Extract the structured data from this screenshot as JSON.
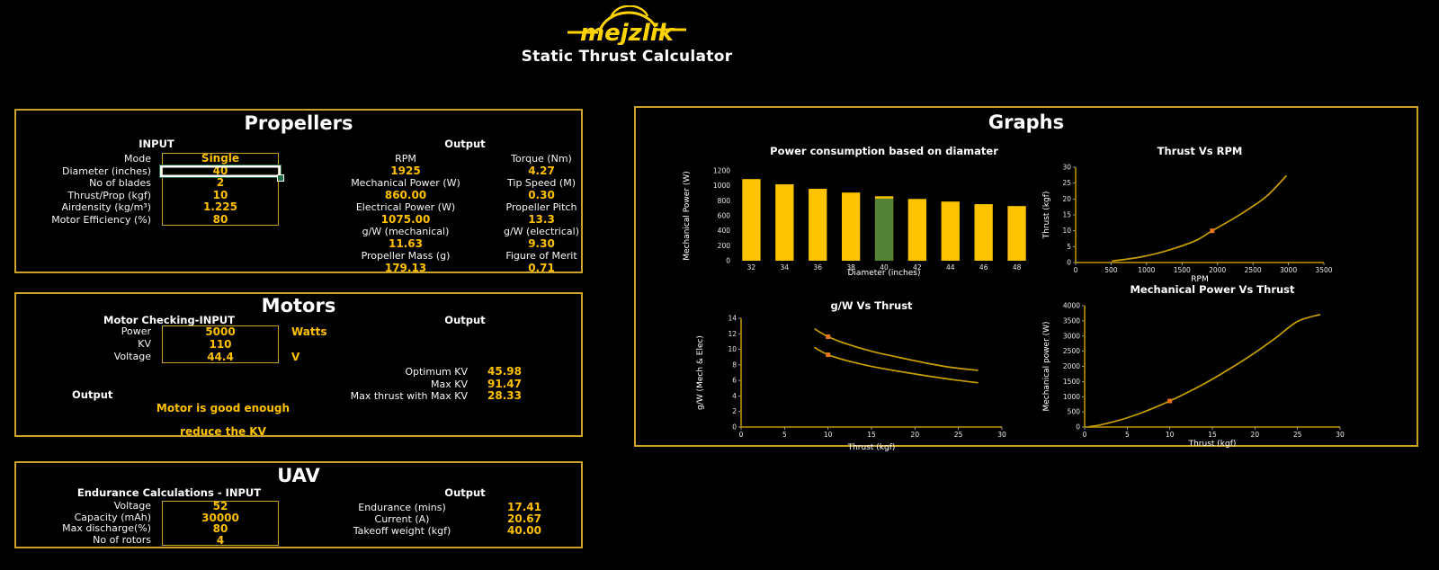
{
  "header": {
    "logo_text": "mejzlik",
    "title": "Static Thrust Calculator"
  },
  "colors": {
    "gold_text": "#FFC000",
    "panel_border": "#C9A227",
    "bar_gold": "#FFC300",
    "bar_green": "#538135",
    "line_gold": "#C9A000",
    "axis_gold": "#A68100",
    "marker_orange": "#E8751A",
    "selection_green": "#1E7145",
    "logo_yellow": "#FFD400"
  },
  "propellers": {
    "title": "Propellers",
    "input_header": "INPUT",
    "output_header": "Output",
    "input_rows": [
      {
        "label": "Mode",
        "value": "Single"
      },
      {
        "label": "Diameter (inches)",
        "value": "40"
      },
      {
        "label": "No of blades",
        "value": "2"
      },
      {
        "label": "Thrust/Prop (kgf)",
        "value": "10"
      },
      {
        "label": "Airdensity (kg/m³)",
        "value": "1.225"
      },
      {
        "label": "Motor Efficiency (%)",
        "value": "80"
      }
    ],
    "output_rows": [
      {
        "l_label": "RPM",
        "l_value": "1925",
        "r_label": "Torque (Nm)",
        "r_value": "4.27"
      },
      {
        "l_label": "Mechanical Power (W)",
        "l_value": "860.00",
        "r_label": "Tip Speed (M)",
        "r_value": "0.30"
      },
      {
        "l_label": "Electrical Power (W)",
        "l_value": "1075.00",
        "r_label": "Propeller Pitch",
        "r_value": "13.3"
      },
      {
        "l_label": "g/W (mechanical)",
        "l_value": "11.63",
        "r_label": "g/W (electrical)",
        "r_value": "9.30"
      },
      {
        "l_label": "Propeller Mass (g)",
        "l_value": "179.13",
        "r_label": "Figure of Merit",
        "r_value": "0.71"
      }
    ]
  },
  "motors": {
    "title": "Motors",
    "input_header": "Motor Checking-INPUT",
    "output_header": "Output",
    "output_label": "Output",
    "input_rows": [
      {
        "label": "Power",
        "value": "5000",
        "unit": "Watts"
      },
      {
        "label": "KV",
        "value": "110",
        "unit": ""
      },
      {
        "label": "Voltage",
        "value": "44.4",
        "unit": "V"
      }
    ],
    "messages": [
      "Motor is good enough",
      "reduce the KV"
    ],
    "output_rows": [
      {
        "label": "Optimum KV",
        "value": "45.98"
      },
      {
        "label": "Max KV",
        "value": "91.47"
      },
      {
        "label": "Max thrust with Max KV",
        "value": "28.33"
      }
    ]
  },
  "uav": {
    "title": "UAV",
    "input_header": "Endurance Calculations - INPUT",
    "output_header": "Output",
    "input_rows": [
      {
        "label": "Voltage",
        "value": "52"
      },
      {
        "label": "Capacity (mAh)",
        "value": "30000"
      },
      {
        "label": "Max discharge(%)",
        "value": "80"
      },
      {
        "label": "No of rotors",
        "value": "4"
      }
    ],
    "output_rows": [
      {
        "label": "Endurance (mins)",
        "value": "17.41"
      },
      {
        "label": "Current (A)",
        "value": "20.67"
      },
      {
        "label": "Takeoff weight (kgf)",
        "value": "40.00"
      }
    ]
  },
  "graphs": {
    "title": "Graphs"
  },
  "chart_data": [
    {
      "type": "bar",
      "title": "Power consumption based on diamater",
      "xlabel": "Diameter (inches)",
      "ylabel": "Mechanical Power (W)",
      "categories": [
        "32",
        "34",
        "36",
        "38",
        "40",
        "42",
        "44",
        "46",
        "48"
      ],
      "values": [
        1090,
        1020,
        960,
        910,
        860,
        825,
        790,
        755,
        730
      ],
      "highlight_index": 4,
      "ylim": [
        0,
        1200
      ],
      "yticks": [
        0,
        200,
        400,
        600,
        800,
        1000,
        1200
      ]
    },
    {
      "type": "line",
      "title": "Thrust Vs RPM",
      "xlabel": "RPM",
      "ylabel": "Thrust (kgf)",
      "xlim": [
        0,
        3500
      ],
      "ylim": [
        0,
        30
      ],
      "xticks": [
        0,
        500,
        1000,
        1500,
        2000,
        2500,
        3000,
        3500
      ],
      "yticks": [
        0,
        5,
        10,
        15,
        20,
        25,
        30
      ],
      "series": [
        {
          "name": "Thrust",
          "x": [
            520,
            800,
            1100,
            1400,
            1700,
            1925,
            2200,
            2450,
            2700,
            2967
          ],
          "y": [
            0.5,
            1.3,
            2.6,
            4.5,
            7.0,
            10.0,
            13.5,
            17.0,
            21.0,
            27.2
          ]
        }
      ],
      "markers": [
        {
          "x": 1925,
          "y": 10
        }
      ]
    },
    {
      "type": "line",
      "title": "g/W Vs Thrust",
      "xlabel": "Thrust (kgf)",
      "ylabel": "g/W (Mech & Elec)",
      "xlim": [
        0,
        30
      ],
      "ylim": [
        0,
        14
      ],
      "xticks": [
        0,
        5,
        10,
        15,
        20,
        25,
        30
      ],
      "yticks": [
        0,
        2,
        4,
        6,
        8,
        10,
        12,
        14
      ],
      "series": [
        {
          "name": "g/W mechanical",
          "x": [
            8.5,
            10,
            12,
            15,
            18,
            21,
            24,
            27.2
          ],
          "y": [
            12.6,
            11.63,
            10.75,
            9.75,
            9.0,
            8.3,
            7.7,
            7.3
          ]
        },
        {
          "name": "g/W electrical",
          "x": [
            8.5,
            10,
            12,
            15,
            18,
            21,
            24,
            27.2
          ],
          "y": [
            10.2,
            9.3,
            8.6,
            7.8,
            7.2,
            6.65,
            6.15,
            5.7
          ]
        }
      ],
      "markers": [
        {
          "x": 10,
          "y": 11.63
        },
        {
          "x": 10,
          "y": 9.3
        }
      ]
    },
    {
      "type": "line",
      "title": "Mechanical Power Vs Thrust",
      "xlabel": "Thrust (kgf)",
      "ylabel": "Mechanical power (W)",
      "xlim": [
        0,
        30
      ],
      "ylim": [
        0,
        4000
      ],
      "xticks": [
        0,
        5,
        10,
        15,
        20,
        25,
        30
      ],
      "yticks": [
        0,
        500,
        1000,
        1500,
        2000,
        2500,
        3000,
        3500,
        4000
      ],
      "series": [
        {
          "name": "Mechanical power",
          "x": [
            0.5,
            2,
            4,
            6,
            8,
            10,
            12.5,
            15,
            17.5,
            20,
            22.5,
            25,
            27.6
          ],
          "y": [
            10,
            80,
            220,
            400,
            615,
            860,
            1200,
            1580,
            2000,
            2450,
            2950,
            3480,
            3705
          ]
        }
      ],
      "markers": [
        {
          "x": 10,
          "y": 860
        }
      ]
    }
  ]
}
